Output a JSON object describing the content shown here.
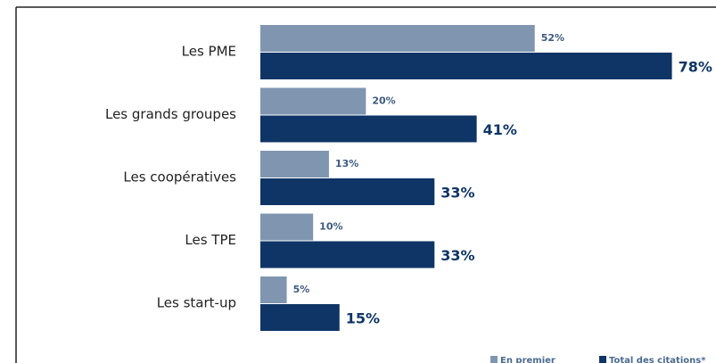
{
  "chart_data": {
    "type": "bar",
    "orientation": "horizontal",
    "categories": [
      "Les PME",
      "Les grands groupes",
      "Les coopératives",
      "Les TPE",
      "Les start-up"
    ],
    "series": [
      {
        "name": "En premier",
        "color": "#8096b0",
        "values": [
          52,
          20,
          13,
          10,
          5
        ],
        "value_labels": [
          "52%",
          "20%",
          "13%",
          "10%",
          "5%"
        ]
      },
      {
        "name": "Total des citations*",
        "color": "#0f3566",
        "values": [
          78,
          41,
          33,
          33,
          15
        ],
        "value_labels": [
          "78%",
          "41%",
          "33%",
          "33%",
          "15%"
        ]
      }
    ],
    "xlim": [
      0,
      85
    ]
  }
}
